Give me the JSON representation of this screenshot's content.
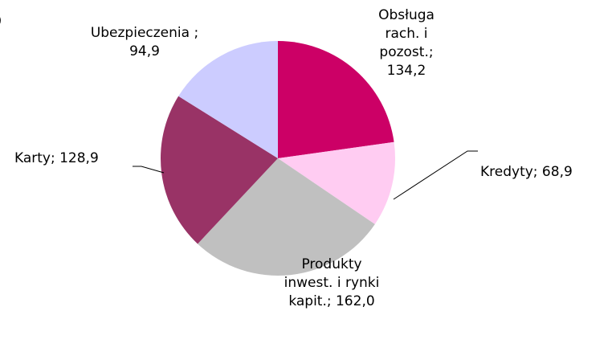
{
  "chart_data": {
    "type": "pie",
    "title": ")",
    "values": [
      134.2,
      68.9,
      162.0,
      128.9,
      94.9
    ],
    "value_labels": [
      "Obsługa rach. i pozost.; 134,2",
      "Kredyty; 68,9",
      "Produkty inwest. i rynki kapit.; 162,0",
      "Karty; 128,9",
      "Ubezpieczenia ; 94,9"
    ],
    "colors": [
      "#cc0066",
      "#ffccf2",
      "#c0c0c0",
      "#993366",
      "#ccccff"
    ]
  }
}
